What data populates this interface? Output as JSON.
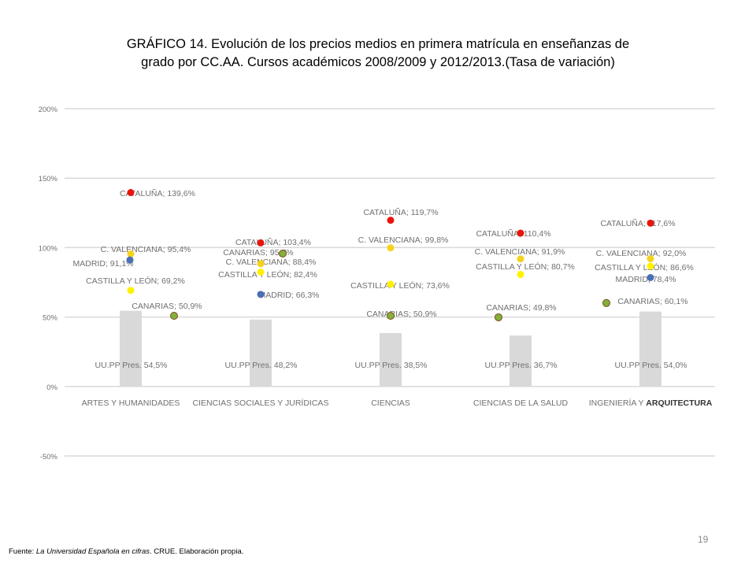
{
  "title": {
    "line1": "GRÁFICO 14.  Evolución de los precios medios en primera matrícula en enseñanzas de",
    "line2": "grado por CC.AA. Cursos académicos 2008/2009 y 2012/2013.(Tasa de variación)"
  },
  "footer": {
    "prefix": "Fuente: ",
    "source": "La Universidad Española en cifras",
    "suffix": ". CRUE. Elaboración propia."
  },
  "page_number": "19",
  "colors": {
    "bar": "#d9d9d9",
    "grid": "#d9d9d9",
    "cataluna": "#e8150d",
    "valenciana": "#f5d21c",
    "madrid": "#4a6fb5",
    "castilla": "#fff200",
    "canarias": "#84b03a",
    "label": "#707070"
  },
  "chart_data": {
    "type": "scatter",
    "ylim": [
      -50,
      200
    ],
    "yticks": [
      -50,
      0,
      50,
      100,
      150,
      200
    ],
    "ytick_labels": [
      "-50%",
      "0%",
      "50%",
      "100%",
      "150%",
      "200%"
    ],
    "categories": [
      {
        "name": "ARTES Y HUMANIDADES",
        "bold": ""
      },
      {
        "name": "CIENCIAS SOCIALES Y JURÍDICAS",
        "bold": ""
      },
      {
        "name": "CIENCIAS",
        "bold": ""
      },
      {
        "name": "CIENCIAS DE LA SALUD",
        "bold": ""
      },
      {
        "name": "INGENIERÍA Y ",
        "bold": "ARQUITECTURA"
      }
    ],
    "bars": {
      "name": "UU.PP Pres.",
      "values": [
        54.5,
        48.2,
        38.5,
        36.7,
        54.0
      ],
      "labels": [
        "UU.PP Pres. 54,5%",
        "UU.PP Pres. 48,2%",
        "UU.PP Pres.  38,5%",
        "UU.PP Pres. 36,7%",
        "UU.PP Pres. 54,0%"
      ]
    },
    "points": [
      {
        "cat": 0,
        "series": "cataluna",
        "value": 139.6,
        "label": "CATALUÑA; 139,6%"
      },
      {
        "cat": 0,
        "series": "valenciana",
        "value": 95.4,
        "label": "C. VALENCIANA; 95,4%"
      },
      {
        "cat": 0,
        "series": "madrid",
        "value": 91.1,
        "label": "MADRID; 91,1%"
      },
      {
        "cat": 0,
        "series": "castilla",
        "value": 69.2,
        "label": "CASTILLA Y LEÓN; 69,2%"
      },
      {
        "cat": 0,
        "series": "canarias",
        "value": 50.9,
        "label": "CANARIAS; 50,9%"
      },
      {
        "cat": 1,
        "series": "cataluna",
        "value": 103.4,
        "label": "CATALUÑA; 103,4%"
      },
      {
        "cat": 1,
        "series": "canarias",
        "value": 95.7,
        "label": "CANARIAS; 95,7%"
      },
      {
        "cat": 1,
        "series": "valenciana",
        "value": 88.4,
        "label": "C. VALENCIANA; 88,4%"
      },
      {
        "cat": 1,
        "series": "castilla",
        "value": 82.4,
        "label": "CASTILLA Y LEÓN; 82,4%"
      },
      {
        "cat": 1,
        "series": "madrid",
        "value": 66.3,
        "label": "MADRID; 66,3%"
      },
      {
        "cat": 2,
        "series": "cataluna",
        "value": 119.7,
        "label": "CATALUÑA; 119,7%"
      },
      {
        "cat": 2,
        "series": "valenciana",
        "value": 99.8,
        "label": "C. VALENCIANA; 99,8%"
      },
      {
        "cat": 2,
        "series": "castilla",
        "value": 73.6,
        "label": "CASTILLA Y LEÓN; 73,6%"
      },
      {
        "cat": 2,
        "series": "canarias",
        "value": 50.9,
        "label": "CANARIAS; 50,9%"
      },
      {
        "cat": 3,
        "series": "cataluna",
        "value": 110.4,
        "label": "CATALUÑA; 110,4%"
      },
      {
        "cat": 3,
        "series": "valenciana",
        "value": 91.9,
        "label": "C. VALENCIANA; 91,9%"
      },
      {
        "cat": 3,
        "series": "castilla",
        "value": 80.7,
        "label": "CASTILLA Y LEÓN; 80,7%"
      },
      {
        "cat": 3,
        "series": "canarias",
        "value": 49.8,
        "label": "CANARIAS; 49,8%"
      },
      {
        "cat": 4,
        "series": "cataluna",
        "value": 117.6,
        "label": "CATALUÑA; 117,6%"
      },
      {
        "cat": 4,
        "series": "valenciana",
        "value": 92.0,
        "label": "C. VALENCIANA; 92,0%"
      },
      {
        "cat": 4,
        "series": "castilla",
        "value": 86.6,
        "label": "CASTILLA Y LEÓN; 86,6%"
      },
      {
        "cat": 4,
        "series": "madrid",
        "value": 78.4,
        "label": "MADRID; 78,4%"
      },
      {
        "cat": 4,
        "series": "canarias",
        "value": 60.1,
        "label": "CANARIAS; 60,1%"
      }
    ]
  }
}
